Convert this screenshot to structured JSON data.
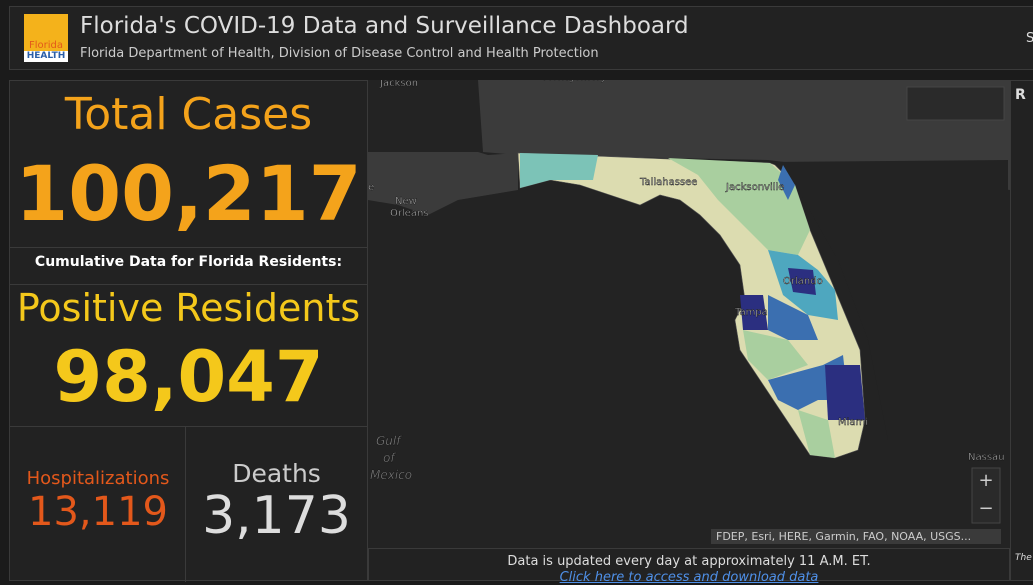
{
  "header": {
    "logo": {
      "top": "Florida",
      "bottom": "HEALTH"
    },
    "title": "Florida's COVID-19 Data and Surveillance Dashboard",
    "subtitle": "Florida Department of Health, Division of Disease Control and Health Protection",
    "right_cut": "S"
  },
  "summary": {
    "total_cases": {
      "label": "Total Cases",
      "value": "100,217"
    },
    "note": "Cumulative Data for Florida Residents:",
    "positive_residents": {
      "label": "Positive Residents",
      "value": "98,047"
    },
    "hospitalizations": {
      "label": "Hospitalizations",
      "value": "13,119"
    },
    "deaths": {
      "label": "Deaths",
      "value": "3,173"
    }
  },
  "map": {
    "places": [
      "Jackson",
      "Montgomery",
      "New",
      "Orleans",
      "e",
      "Tallahassee",
      "Jacksonville",
      "Orlando",
      "Tampa",
      "Miami",
      "Gulf",
      "of",
      "Mexico",
      "Nassau"
    ],
    "zoom_in": "+",
    "zoom_out": "−",
    "attribution": "FDEP, Esri, HERE, Garmin, FAO, NOAA, USGS..."
  },
  "footer": {
    "text": "Data is updated every day at approximately 11 A.M. ET.",
    "link": "Click here to access and download data"
  },
  "right_panel": {
    "heading_cut": "R",
    "text_cut": "The"
  }
}
